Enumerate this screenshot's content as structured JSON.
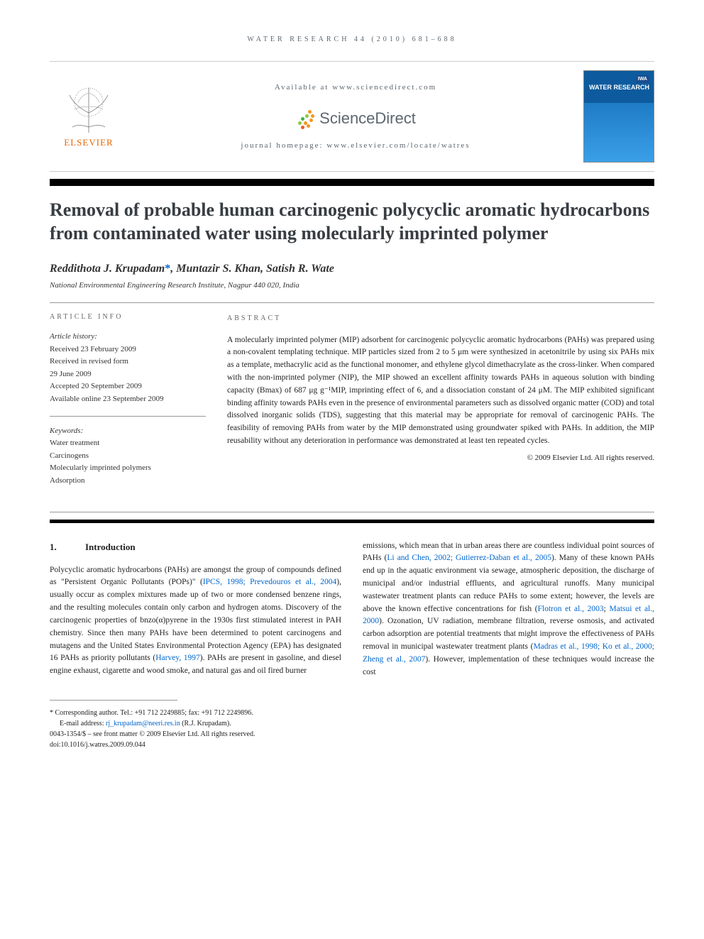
{
  "running_header": "WATER RESEARCH 44 (2010) 681–688",
  "header": {
    "available_at": "Available at www.sciencedirect.com",
    "sciencedirect_label": "ScienceDirect",
    "journal_homepage": "journal homepage: www.elsevier.com/locate/watres",
    "elsevier_label": "ELSEVIER",
    "cover_badge": "IWA",
    "cover_title": "WATER RESEARCH"
  },
  "sd_dot_colors": [
    "#f7931e",
    "#f7931e",
    "#8cc63f",
    "#39b54a",
    "#f7931e",
    "#f7931e",
    "#8cc63f",
    "#f7931e",
    "#f15a24"
  ],
  "sd_dot_pos": [
    [
      18,
      2
    ],
    [
      22,
      8
    ],
    [
      14,
      8
    ],
    [
      8,
      12
    ],
    [
      20,
      14
    ],
    [
      12,
      18
    ],
    [
      4,
      18
    ],
    [
      16,
      22
    ],
    [
      8,
      24
    ]
  ],
  "title": "Removal of probable human carcinogenic polycyclic aromatic hydrocarbons from contaminated water using molecularly imprinted polymer",
  "authors_html": "Reddithota J. Krupadam*, Muntazir S. Khan, Satish R. Wate",
  "authors": [
    {
      "name": "Reddithota J. Krupadam",
      "corr": true
    },
    {
      "name": "Muntazir S. Khan",
      "corr": false
    },
    {
      "name": "Satish R. Wate",
      "corr": false
    }
  ],
  "affiliation": "National Environmental Engineering Research Institute, Nagpur 440 020, India",
  "info": {
    "heading": "ARTICLE INFO",
    "history_label": "Article history:",
    "history": [
      "Received 23 February 2009",
      "Received in revised form",
      "29 June 2009",
      "Accepted 20 September 2009",
      "Available online 23 September 2009"
    ],
    "keywords_label": "Keywords:",
    "keywords": [
      "Water treatment",
      "Carcinogens",
      "Molecularly imprinted polymers",
      "Adsorption"
    ]
  },
  "abstract": {
    "heading": "ABSTRACT",
    "text": "A molecularly imprinted polymer (MIP) adsorbent for carcinogenic polycyclic aromatic hydrocarbons (PAHs) was prepared using a non-covalent templating technique. MIP particles sized from 2 to 5 μm were synthesized in acetonitrile by using six PAHs mix as a template, methacrylic acid as the functional monomer, and ethylene glycol dimethacrylate as the cross-linker. When compared with the non-imprinted polymer (NIP), the MIP showed an excellent affinity towards PAHs in aqueous solution with binding capacity (Bmax) of 687 μg g⁻¹MIP, imprinting effect of 6, and a dissociation constant of 24 μM. The MIP exhibited significant binding affinity towards PAHs even in the presence of environmental parameters such as dissolved organic matter (COD) and total dissolved inorganic solids (TDS), suggesting that this material may be appropriate for removal of carcinogenic PAHs. The feasibility of removing PAHs from water by the MIP demonstrated using groundwater spiked with PAHs. In addition, the MIP reusability without any deterioration in performance was demonstrated at least ten repeated cycles.",
    "copyright": "© 2009 Elsevier Ltd. All rights reserved."
  },
  "section": {
    "number": "1.",
    "title": "Introduction"
  },
  "body": {
    "col1_parts": [
      {
        "t": "text",
        "v": "Polycyclic aromatic hydrocarbons (PAHs) are amongst the group of compounds defined as \"Persistent Organic Pollutants (POPs)\" ("
      },
      {
        "t": "cite",
        "v": "IPCS, 1998; Prevedouros et al., 2004"
      },
      {
        "t": "text",
        "v": "), usually occur as complex mixtures made up of two or more condensed benzene rings, and the resulting molecules contain only carbon and hydrogen atoms. Discovery of the carcinogenic properties of bnzo(α)pyrene in the 1930s first stimulated interest in PAH chemistry. Since then many PAHs have been determined to potent carcinogens and mutagens and the United States Environmental Protection Agency (EPA) has designated 16 PAHs as priority pollutants ("
      },
      {
        "t": "cite",
        "v": "Harvey, 1997"
      },
      {
        "t": "text",
        "v": "). PAHs are present in gasoline, and diesel engine exhaust, cigarette and wood smoke, and natural gas and oil fired burner"
      }
    ],
    "col2_parts": [
      {
        "t": "text",
        "v": "emissions, which mean that in urban areas there are countless individual point sources of PAHs ("
      },
      {
        "t": "cite",
        "v": "Li and Chen, 2002; Gutierrez-Daban et al., 2005"
      },
      {
        "t": "text",
        "v": "). Many of these known PAHs end up in the aquatic environment via sewage, atmospheric deposition, the discharge of municipal and/or industrial effluents, and agricultural runoffs. Many municipal wastewater treatment plants can reduce PAHs to some extent; however, the levels are above the known effective concentrations for fish ("
      },
      {
        "t": "cite",
        "v": "Flotron et al., 2003"
      },
      {
        "t": "text",
        "v": "; "
      },
      {
        "t": "cite",
        "v": "Matsui et al., 2000"
      },
      {
        "t": "text",
        "v": "). Ozonation, UV radiation, membrane filtration, reverse osmosis, and activated carbon adsorption are potential treatments that might improve the effectiveness of PAHs removal in municipal wastewater treatment plants ("
      },
      {
        "t": "cite",
        "v": "Madras et al., 1998; Ko et al., 2000; Zheng et al., 2007"
      },
      {
        "t": "text",
        "v": "). However, implementation of these techniques would increase the cost"
      }
    ]
  },
  "footnotes": {
    "corresponding": "* Corresponding author. Tel.: +91 712 2249885; fax: +91 712 2249896.",
    "email_label": "E-mail address:",
    "email": "rj_krupadam@neeri.res.in",
    "email_author": "(R.J. Krupadam).",
    "issn_line": "0043-1354/$ – see front matter © 2009 Elsevier Ltd. All rights reserved.",
    "doi": "doi:10.1016/j.watres.2009.09.044"
  },
  "colors": {
    "citation": "#0066cc",
    "elsevier_orange": "#EB6500",
    "header_gray": "#5C6770"
  }
}
